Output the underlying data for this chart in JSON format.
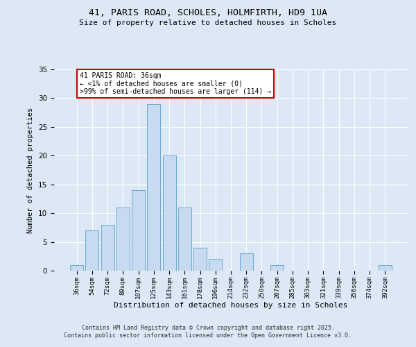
{
  "title_line1": "41, PARIS ROAD, SCHOLES, HOLMFIRTH, HD9 1UA",
  "title_line2": "Size of property relative to detached houses in Scholes",
  "xlabel": "Distribution of detached houses by size in Scholes",
  "ylabel": "Number of detached properties",
  "bar_labels": [
    "36sqm",
    "54sqm",
    "72sqm",
    "89sqm",
    "107sqm",
    "125sqm",
    "143sqm",
    "161sqm",
    "178sqm",
    "196sqm",
    "214sqm",
    "232sqm",
    "250sqm",
    "267sqm",
    "285sqm",
    "303sqm",
    "321sqm",
    "339sqm",
    "356sqm",
    "374sqm",
    "392sqm"
  ],
  "bar_heights": [
    1,
    7,
    8,
    11,
    14,
    29,
    20,
    11,
    4,
    2,
    0,
    3,
    0,
    1,
    0,
    0,
    0,
    0,
    0,
    0,
    1
  ],
  "bar_color": "#c8daf0",
  "bar_edge_color": "#6aaad4",
  "annotation_title": "41 PARIS ROAD: 36sqm",
  "annotation_line1": "← <1% of detached houses are smaller (0)",
  "annotation_line2": ">99% of semi-detached houses are larger (114) →",
  "annotation_box_color": "#ffffff",
  "annotation_box_edge": "#cc0000",
  "ylim": [
    0,
    35
  ],
  "yticks": [
    0,
    5,
    10,
    15,
    20,
    25,
    30,
    35
  ],
  "background_color": "#dce8f5",
  "grid_color": "#ffffff",
  "footer_line1": "Contains HM Land Registry data © Crown copyright and database right 2025.",
  "footer_line2": "Contains public sector information licensed under the Open Government Licence v3.0."
}
